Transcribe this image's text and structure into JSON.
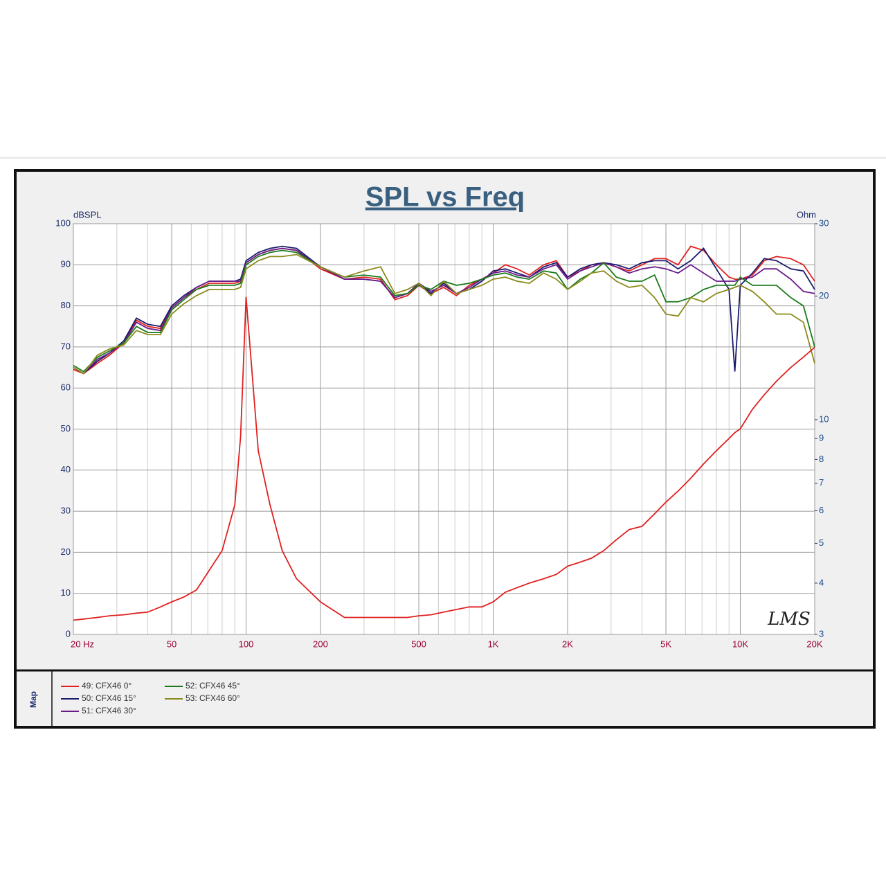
{
  "chart_data": {
    "type": "line",
    "title": "SPL vs Freq",
    "y_label": "dBSPL",
    "y2_label": "Ohm",
    "annotation": "LMS",
    "legend_title": "Map",
    "xscale": "log",
    "y2scale": "log",
    "grid": true,
    "x": [
      20,
      22,
      25,
      28,
      32,
      36,
      40,
      45,
      50,
      56,
      63,
      71,
      80,
      90,
      95,
      100,
      112,
      125,
      140,
      160,
      200,
      250,
      300,
      350,
      400,
      450,
      500,
      560,
      630,
      710,
      800,
      900,
      1000,
      1120,
      1250,
      1400,
      1600,
      1800,
      2000,
      2250,
      2500,
      2800,
      3150,
      3550,
      4000,
      4500,
      5000,
      5600,
      6300,
      7100,
      8000,
      9000,
      9500,
      10000,
      11200,
      12500,
      14000,
      16000,
      18000,
      20000
    ],
    "xlim": [
      20,
      20000
    ],
    "xticks": [
      {
        "value": 20,
        "label": "20  Hz"
      },
      50,
      100,
      200,
      500,
      {
        "value": 1000,
        "label": "1K"
      },
      {
        "value": 2000,
        "label": "2K"
      },
      {
        "value": 5000,
        "label": "5K"
      },
      {
        "value": 10000,
        "label": "10K"
      },
      {
        "value": 20000,
        "label": "20K"
      }
    ],
    "xgrid": [
      30,
      40,
      60,
      70,
      80,
      90,
      300,
      400,
      600,
      700,
      800,
      900,
      3000,
      4000,
      6000,
      7000,
      8000,
      9000
    ],
    "ylim": [
      0,
      100
    ],
    "yticks": [
      0,
      10,
      20,
      30,
      40,
      50,
      60,
      70,
      80,
      90,
      100
    ],
    "y2lim": [
      3,
      30
    ],
    "y2ticks": [
      3,
      4,
      5,
      6,
      7,
      8,
      9,
      10,
      20,
      30
    ],
    "series": [
      {
        "name": "49: CFX46  0°",
        "color": "#e0201f",
        "values": [
          64.5,
          63.5,
          66,
          68,
          71,
          76.5,
          75,
          74.5,
          79.5,
          82,
          84,
          85.5,
          85.5,
          85.5,
          86,
          90.5,
          92.5,
          93.5,
          94,
          93.5,
          89,
          86.5,
          87,
          86.5,
          81.5,
          82.5,
          85,
          83,
          84.5,
          82.5,
          85,
          86.5,
          88,
          90,
          89,
          87.5,
          90,
          91,
          87,
          88.5,
          90,
          90.5,
          89.5,
          88.5,
          90,
          91.5,
          91.5,
          90,
          94.5,
          93.5,
          90,
          87,
          86.5,
          86.5,
          87.5,
          91,
          92,
          91.5,
          90,
          86
        ]
      },
      {
        "name": "50: CFX46  15°",
        "color": "#1a1a6e",
        "values": [
          65,
          63.5,
          66.5,
          68.5,
          71.5,
          77,
          75.5,
          75,
          80,
          82.5,
          84.5,
          86,
          86,
          86,
          86.5,
          91,
          93,
          94,
          94.5,
          94,
          89.5,
          86.5,
          86.5,
          86,
          82,
          83,
          85.5,
          83,
          85.5,
          83,
          84,
          86,
          88.5,
          89,
          88,
          87,
          89.5,
          90.5,
          87,
          89,
          90,
          90.5,
          90,
          89,
          90.5,
          91,
          91,
          89,
          91,
          94,
          89,
          84,
          64,
          85,
          88,
          91.5,
          91,
          89,
          88.5,
          84
        ]
      },
      {
        "name": "51: CFX46  30°",
        "color": "#6a1a8a",
        "values": [
          65,
          63.5,
          67,
          68.5,
          71,
          76,
          74.5,
          74,
          79.5,
          82,
          84.5,
          86,
          86,
          86,
          86,
          90.5,
          92.5,
          93.5,
          94,
          93.5,
          89.5,
          86.5,
          86.5,
          86,
          82,
          83,
          85.5,
          83.5,
          85,
          83,
          84.5,
          86.5,
          88,
          88.5,
          87.5,
          87,
          89,
          90,
          86.5,
          88.5,
          89.5,
          90.5,
          89.5,
          88,
          89,
          89.5,
          89,
          88,
          90,
          88,
          86,
          86,
          86,
          86.5,
          87,
          89,
          89,
          86.5,
          83.5,
          83
        ]
      },
      {
        "name": "52: CFX46  45°",
        "color": "#1a7a1a",
        "values": [
          65.5,
          64,
          67.5,
          69,
          71,
          75,
          73.5,
          73.5,
          79,
          81.5,
          84,
          85,
          85,
          85,
          85.5,
          90,
          92,
          93,
          93.5,
          93,
          89.5,
          87,
          87.5,
          87,
          82.5,
          83,
          85,
          84,
          86,
          85,
          85.5,
          86.5,
          87.5,
          88,
          87,
          86.5,
          88.5,
          88,
          84,
          86.5,
          88,
          90.5,
          87,
          86,
          86,
          87.5,
          81,
          81,
          82,
          84,
          85,
          85,
          85,
          87,
          85,
          85,
          85,
          82,
          80,
          70
        ]
      },
      {
        "name": "53: CFX46  60°",
        "color": "#8a8a1a",
        "values": [
          65,
          63.5,
          68,
          69.5,
          70.5,
          74,
          73,
          73,
          78,
          80.5,
          82.5,
          84,
          84,
          84,
          84.5,
          89,
          91,
          92,
          92,
          92.5,
          89.5,
          87,
          88.5,
          89.5,
          83,
          84,
          85.5,
          82.5,
          86,
          83,
          84,
          85,
          86.5,
          87,
          86,
          85.5,
          88,
          86.5,
          84,
          86,
          88,
          88.5,
          86,
          84.5,
          85,
          82,
          78,
          77.5,
          82,
          81,
          83,
          84,
          84.5,
          85,
          83.5,
          81,
          78,
          78,
          76,
          66
        ]
      },
      {
        "color": "#e0201f",
        "axis": "y2",
        "values": [
          3.25,
          3.27,
          3.3,
          3.33,
          3.35,
          3.38,
          3.4,
          3.5,
          3.6,
          3.7,
          3.85,
          4.3,
          4.8,
          6.2,
          9.1,
          19.9,
          8.4,
          6.2,
          4.8,
          4.1,
          3.6,
          3.3,
          3.3,
          3.3,
          3.3,
          3.3,
          3.33,
          3.35,
          3.4,
          3.45,
          3.5,
          3.5,
          3.6,
          3.8,
          3.9,
          4.0,
          4.1,
          4.2,
          4.4,
          4.5,
          4.6,
          4.8,
          5.1,
          5.4,
          5.5,
          5.9,
          6.3,
          6.7,
          7.2,
          7.8,
          8.4,
          9.0,
          9.3,
          9.5,
          10.6,
          11.5,
          12.4,
          13.4,
          14.2,
          15
        ]
      }
    ]
  }
}
